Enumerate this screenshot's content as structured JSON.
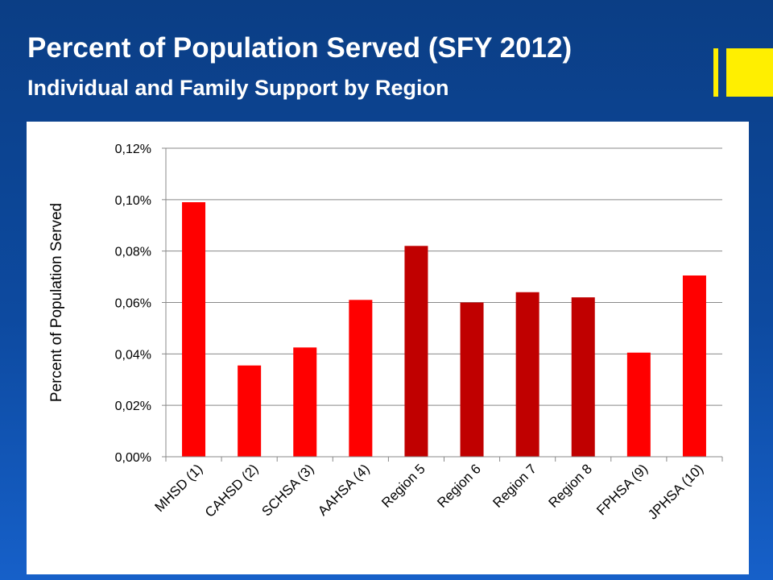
{
  "header": {
    "title": "Percent of Population Served (SFY 2012)",
    "subtitle": "Individual and Family Support by Region"
  },
  "colors": {
    "background": "#0d4aa0",
    "accent": "#ffef00",
    "bar_red": "#ff0000",
    "bar_dark_red": "#c00000",
    "gridline": "#888888"
  },
  "chart_data": {
    "type": "bar",
    "title": "",
    "xlabel": "",
    "ylabel": "Percent of Population Served",
    "ylim": [
      0,
      0.12
    ],
    "yticks": [
      "0,00%",
      "0,02%",
      "0,04%",
      "0,06%",
      "0,08%",
      "0,10%",
      "0,12%"
    ],
    "grid": true,
    "categories": [
      "MHSD (1)",
      "CAHSD (2)",
      "SCHSA (3)",
      "AAHSA (4)",
      "Region 5",
      "Region 6",
      "Region 7",
      "Region 8",
      "FPHSA (9)",
      "JPHSA (10)"
    ],
    "values": [
      0.099,
      0.0355,
      0.0425,
      0.061,
      0.082,
      0.06,
      0.064,
      0.062,
      0.0405,
      0.0705
    ],
    "bar_colors": [
      "#ff0000",
      "#ff0000",
      "#ff0000",
      "#ff0000",
      "#c00000",
      "#c00000",
      "#c00000",
      "#c00000",
      "#ff0000",
      "#ff0000"
    ]
  }
}
